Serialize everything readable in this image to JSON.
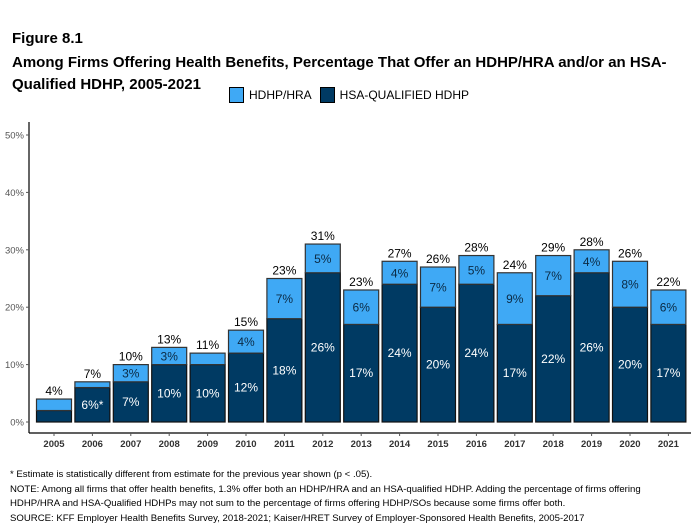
{
  "header": {
    "figure_label": "Figure 8.1",
    "title": "Among Firms Offering Health Benefits, Percentage That Offer an HDHP/HRA and/or an HSA-Qualified HDHP, 2005-2021"
  },
  "colors": {
    "hdhp_hra": "#3FA9F5",
    "hsa_qualified": "#003A63"
  },
  "chart_data": {
    "type": "bar",
    "stacked": true,
    "title": "Among Firms Offering Health Benefits, Percentage That Offer an HDHP/HRA and/or an HSA-Qualified HDHP, 2005-2021",
    "xlabel": "",
    "ylabel": "",
    "ylim": [
      0,
      50
    ],
    "yticks": [
      0,
      10,
      20,
      30,
      40,
      50
    ],
    "ytick_labels": [
      "0%",
      "10%",
      "20%",
      "30%",
      "40%",
      "50%"
    ],
    "legend_position": "top",
    "categories": [
      "2005",
      "2006",
      "2007",
      "2008",
      "2009",
      "2010",
      "2011",
      "2012",
      "2013",
      "2014",
      "2015",
      "2016",
      "2017",
      "2018",
      "2019",
      "2020",
      "2021"
    ],
    "series": [
      {
        "name": "HSA-QUALIFIED HDHP",
        "color": "#003A63",
        "values": [
          2,
          6,
          7,
          10,
          10,
          12,
          18,
          26,
          17,
          24,
          20,
          24,
          17,
          22,
          26,
          20,
          17
        ],
        "labels": [
          "",
          "6%*",
          "7%",
          "10%",
          "10%",
          "12%",
          "18%",
          "26%",
          "17%",
          "24%",
          "20%",
          "24%",
          "17%",
          "22%",
          "26%",
          "20%",
          "17%"
        ]
      },
      {
        "name": "HDHP/HRA",
        "color": "#3FA9F5",
        "values": [
          2,
          1,
          3,
          3,
          2,
          4,
          7,
          5,
          6,
          4,
          7,
          5,
          9,
          7,
          4,
          8,
          6
        ],
        "labels": [
          "",
          "",
          "3%",
          "3%",
          "",
          "4%",
          "7%",
          "5%",
          "6%",
          "4%",
          "7%",
          "5%",
          "9%",
          "7%",
          "4%",
          "8%",
          "6%"
        ]
      }
    ],
    "totals": [
      4,
      7,
      10,
      13,
      11,
      15,
      23,
      31,
      23,
      27,
      26,
      28,
      24,
      29,
      28,
      26,
      22
    ],
    "total_labels": [
      "4%",
      "7%",
      "10%",
      "13%",
      "11%",
      "15%",
      "23%",
      "31%",
      "23%",
      "27%",
      "26%",
      "28%",
      "24%",
      "29%",
      "28%",
      "26%",
      "22%"
    ]
  },
  "legend": [
    {
      "label": "HDHP/HRA",
      "color": "#3FA9F5"
    },
    {
      "label": "HSA-QUALIFIED HDHP",
      "color": "#003A63"
    }
  ],
  "notes": {
    "asterisk": "* Estimate is statistically different from estimate for the previous year shown (p < .05).",
    "note_line1": "NOTE: Among all firms that offer health benefits, 1.3% offer both an HDHP/HRA and an HSA-qualified HDHP. Adding the percentage of firms offering",
    "note_line2": "HDHP/HRA and HSA-Qualified HDHPs may not sum to the percentage of firms offering HDHP/SOs because some firms offer both.",
    "source": "SOURCE: KFF Employer Health Benefits Survey, 2018-2021; Kaiser/HRET Survey of Employer-Sponsored Health Benefits, 2005-2017"
  }
}
